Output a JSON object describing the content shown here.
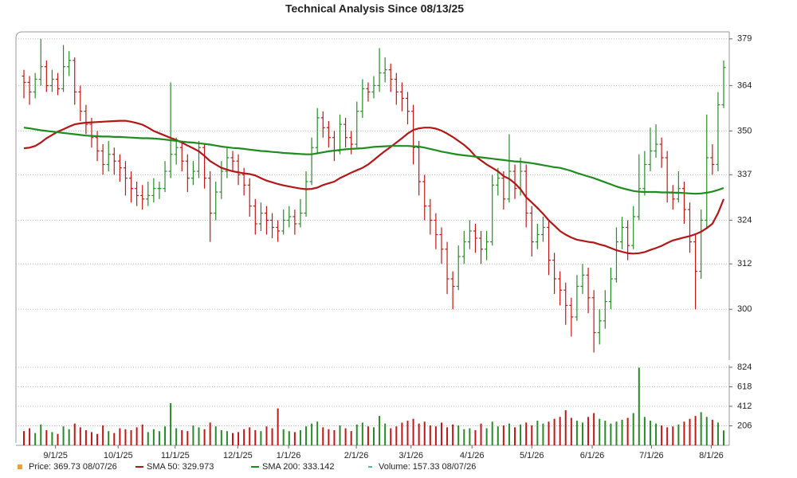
{
  "chart_data": {
    "type": "ohlc",
    "title": "Technical Analysis Since 08/13/25",
    "xlim": [
      0,
      124
    ],
    "xticks": [
      {
        "value": 5.6,
        "label": "9/1/25"
      },
      {
        "value": 16.7,
        "label": "10/1/25"
      },
      {
        "value": 26.8,
        "label": "11/1/25"
      },
      {
        "value": 37.9,
        "label": "12/1/25"
      },
      {
        "value": 46.9,
        "label": "1/1/26"
      },
      {
        "value": 58.9,
        "label": "2/1/26"
      },
      {
        "value": 68.6,
        "label": "3/1/26"
      },
      {
        "value": 79.4,
        "label": "4/1/26"
      },
      {
        "value": 90.0,
        "label": "5/1/26"
      },
      {
        "value": 100.7,
        "label": "6/1/26"
      },
      {
        "value": 111.2,
        "label": "7/1/26"
      },
      {
        "value": 121.8,
        "label": "8/1/26"
      }
    ],
    "ylim": [
      287.5,
      381.3
    ],
    "yticks": [
      300,
      312,
      324,
      337,
      350,
      364,
      379
    ],
    "log_scale": true,
    "grid": true,
    "up_color": "#2a8a2a",
    "down_color": "#c01818",
    "price_legend": {
      "name": "Price: 369.73 08/07/26",
      "color": "#f0a030"
    },
    "volume_legend": {
      "name": "Volume: 157.33 08/07/26",
      "color": "#20a0a0"
    },
    "ohlc": [
      [
        367,
        369,
        360,
        365
      ],
      [
        365,
        367,
        358,
        362
      ],
      [
        362,
        368,
        360,
        366
      ],
      [
        366,
        379,
        364,
        370
      ],
      [
        370,
        372,
        362,
        364
      ],
      [
        364,
        369,
        362,
        366
      ],
      [
        366,
        368,
        361,
        363
      ],
      [
        363,
        377,
        362,
        370
      ],
      [
        370,
        375,
        367,
        372
      ],
      [
        372,
        373,
        358,
        362
      ],
      [
        362,
        364,
        353,
        356
      ],
      [
        356,
        358,
        349,
        352
      ],
      [
        352,
        354,
        345,
        348
      ],
      [
        348,
        350,
        341,
        344
      ],
      [
        344,
        346,
        337,
        340
      ],
      [
        340,
        347,
        338,
        343
      ],
      [
        343,
        345,
        337,
        341
      ],
      [
        341,
        343,
        335,
        339
      ],
      [
        339,
        341,
        331,
        336
      ],
      [
        336,
        338,
        329,
        333
      ],
      [
        333,
        335,
        328,
        331
      ],
      [
        331,
        334,
        327,
        330
      ],
      [
        330,
        335,
        328,
        331
      ],
      [
        331,
        336,
        329,
        333
      ],
      [
        333,
        335,
        330,
        333
      ],
      [
        333,
        341,
        332,
        338
      ],
      [
        338,
        365,
        336,
        343
      ],
      [
        343,
        348,
        340,
        345
      ],
      [
        345,
        347,
        338,
        341
      ],
      [
        341,
        343,
        332,
        336
      ],
      [
        336,
        341,
        334,
        338
      ],
      [
        338,
        347,
        336,
        345
      ],
      [
        345,
        346,
        333,
        336
      ],
      [
        336,
        338,
        318,
        326
      ],
      [
        326,
        335,
        324,
        332
      ],
      [
        332,
        341,
        330,
        338
      ],
      [
        338,
        345,
        336,
        342
      ],
      [
        342,
        344,
        338,
        341
      ],
      [
        341,
        343,
        334,
        337
      ],
      [
        337,
        339,
        331,
        334
      ],
      [
        334,
        336,
        325,
        328
      ],
      [
        328,
        330,
        320,
        323
      ],
      [
        323,
        329,
        321,
        326
      ],
      [
        326,
        328,
        320,
        324
      ],
      [
        324,
        326,
        319,
        322
      ],
      [
        322,
        324,
        318,
        321
      ],
      [
        321,
        327,
        320,
        324
      ],
      [
        324,
        328,
        322,
        325
      ],
      [
        325,
        327,
        320,
        323
      ],
      [
        323,
        330,
        322,
        326
      ],
      [
        326,
        338,
        325,
        335
      ],
      [
        335,
        348,
        334,
        345
      ],
      [
        345,
        357,
        343,
        354
      ],
      [
        354,
        356,
        348,
        351
      ],
      [
        351,
        353,
        345,
        348
      ],
      [
        348,
        350,
        341,
        344
      ],
      [
        344,
        355,
        343,
        352
      ],
      [
        352,
        354,
        345,
        348
      ],
      [
        348,
        350,
        343,
        346
      ],
      [
        346,
        359,
        345,
        356
      ],
      [
        356,
        366,
        354,
        363
      ],
      [
        363,
        365,
        359,
        362
      ],
      [
        362,
        367,
        360,
        364
      ],
      [
        364,
        376,
        362,
        368
      ],
      [
        368,
        373,
        365,
        369
      ],
      [
        369,
        371,
        362,
        366
      ],
      [
        366,
        368,
        358,
        362
      ],
      [
        362,
        365,
        356,
        360
      ],
      [
        360,
        362,
        352,
        356
      ],
      [
        356,
        358,
        340,
        345
      ],
      [
        345,
        347,
        331,
        335
      ],
      [
        335,
        337,
        324,
        328
      ],
      [
        328,
        330,
        320,
        324
      ],
      [
        324,
        326,
        316,
        320
      ],
      [
        320,
        322,
        312,
        316
      ],
      [
        316,
        318,
        304,
        308
      ],
      [
        308,
        310,
        300,
        306
      ],
      [
        306,
        317,
        305,
        314
      ],
      [
        314,
        321,
        312,
        318
      ],
      [
        318,
        324,
        316,
        321
      ],
      [
        321,
        323,
        315,
        319
      ],
      [
        319,
        321,
        312,
        316
      ],
      [
        316,
        321,
        313,
        318
      ],
      [
        318,
        337,
        317,
        334
      ],
      [
        334,
        339,
        331,
        336
      ],
      [
        336,
        338,
        327,
        330
      ],
      [
        330,
        349,
        329,
        338
      ],
      [
        338,
        340,
        330,
        333
      ],
      [
        333,
        342,
        331,
        338
      ],
      [
        338,
        340,
        322,
        326
      ],
      [
        326,
        328,
        314,
        318
      ],
      [
        318,
        323,
        316,
        320
      ],
      [
        320,
        325,
        318,
        322
      ],
      [
        322,
        324,
        309,
        313
      ],
      [
        313,
        315,
        304,
        308
      ],
      [
        308,
        310,
        301,
        305
      ],
      [
        305,
        307,
        296,
        301
      ],
      [
        301,
        303,
        293,
        298
      ],
      [
        298,
        309,
        297,
        306
      ],
      [
        306,
        312,
        304,
        309
      ],
      [
        309,
        311,
        299,
        303
      ],
      [
        303,
        305,
        289,
        294
      ],
      [
        294,
        300,
        291,
        297
      ],
      [
        297,
        305,
        295,
        302
      ],
      [
        302,
        311,
        300,
        308
      ],
      [
        308,
        322,
        307,
        318
      ],
      [
        318,
        325,
        316,
        322
      ],
      [
        322,
        324,
        313,
        317
      ],
      [
        317,
        328,
        316,
        325
      ],
      [
        325,
        343,
        324,
        333
      ],
      [
        333,
        344,
        331,
        340
      ],
      [
        340,
        351,
        338,
        344
      ],
      [
        344,
        352,
        342,
        346
      ],
      [
        346,
        348,
        339,
        342
      ],
      [
        342,
        344,
        329,
        332
      ],
      [
        332,
        334,
        327,
        330
      ],
      [
        330,
        338,
        329,
        333
      ],
      [
        333,
        335,
        323,
        327
      ],
      [
        327,
        329,
        315,
        318
      ],
      [
        318,
        320,
        300,
        310
      ],
      [
        310,
        327,
        308,
        324
      ],
      [
        324,
        355,
        322,
        342
      ],
      [
        342,
        346,
        337,
        340
      ],
      [
        340,
        362,
        338,
        358
      ],
      [
        358,
        372,
        357,
        369.73
      ]
    ],
    "series": [
      {
        "name": "SMA 50: 329.973",
        "color": "#b01818",
        "values": [
          344.8,
          345,
          345.5,
          346.5,
          347.8,
          348.8,
          349.8,
          350.5,
          351.3,
          352,
          352.3,
          352.5,
          352.6,
          352.7,
          352.8,
          352.9,
          353,
          353.1,
          353.1,
          352.8,
          352.4,
          351.9,
          351,
          350,
          349.3,
          348.6,
          347.9,
          347.3,
          346.5,
          345.6,
          344.8,
          343.9,
          342.5,
          341,
          340,
          339,
          338.5,
          338,
          337.7,
          337.4,
          337.2,
          336.8,
          336,
          335.3,
          334.8,
          334.3,
          333.9,
          333.6,
          333.3,
          333,
          332.8,
          332.9,
          333.3,
          334,
          334.5,
          335,
          336,
          336.8,
          337.6,
          338.3,
          339,
          340,
          341.3,
          342.7,
          344,
          345.2,
          346.5,
          347.8,
          349.2,
          350.3,
          350.8,
          351,
          351,
          350.7,
          350.1,
          349.2,
          348.2,
          347,
          345.8,
          344.3,
          342.4,
          341.2,
          340,
          339,
          338,
          336.6,
          335.8,
          334.5,
          332.8,
          330.5,
          329,
          327.5,
          325.8,
          324,
          322.5,
          321,
          320,
          319.2,
          318.6,
          318.3,
          318,
          317.8,
          317.3,
          316.9,
          316.3,
          315.7,
          315.3,
          314.9,
          314.8,
          314.9,
          315.2,
          315.8,
          316.3,
          316.9,
          317.7,
          318.4,
          318.8,
          319.2,
          319.6,
          320.1,
          320.8,
          321.8,
          323,
          326,
          329.973
        ]
      },
      {
        "name": "SMA 200: 333.142",
        "color": "#1e8c1e",
        "values": [
          351,
          350.8,
          350.5,
          350.2,
          350,
          349.8,
          349.6,
          349.4,
          349.2,
          349,
          348.8,
          348.6,
          348.5,
          348.4,
          348.3,
          348.3,
          348.2,
          348.2,
          348.1,
          348,
          347.9,
          347.8,
          347.8,
          347.7,
          347.6,
          347.4,
          347.2,
          347,
          346.8,
          346.6,
          346.5,
          346.3,
          346.1,
          345.9,
          345.6,
          345.3,
          345.1,
          344.9,
          344.8,
          344.6,
          344.4,
          344.2,
          344,
          343.9,
          343.7,
          343.6,
          343.4,
          343.3,
          343.2,
          343.1,
          343,
          343,
          343.3,
          343.6,
          343.9,
          344.1,
          344.3,
          344.5,
          344.6,
          344.7,
          344.8,
          345,
          345.2,
          345.3,
          345.4,
          345.5,
          345.5,
          345.5,
          345.5,
          345.4,
          345.3,
          345,
          344.6,
          344.2,
          343.8,
          343.5,
          343.2,
          342.9,
          342.7,
          342.5,
          342.3,
          342.1,
          341.9,
          341.7,
          341.5,
          341.3,
          341.1,
          340.9,
          340.8,
          340.6,
          340.4,
          340.1,
          339.8,
          339.5,
          339.2,
          339,
          338.6,
          338.1,
          337.5,
          337,
          336.5,
          336,
          335.4,
          334.8,
          334.2,
          333.6,
          333.1,
          332.7,
          332.3,
          332.1,
          332,
          332,
          332,
          331.9,
          331.9,
          331.8,
          331.8,
          331.7,
          331.6,
          331.5,
          331.6,
          331.8,
          332.1,
          332.6,
          333.142
        ]
      }
    ],
    "volume": [
      150,
      180,
      130,
      220,
      160,
      140,
      120,
      200,
      170,
      230,
      190,
      160,
      140,
      120,
      210,
      150,
      130,
      180,
      170,
      160,
      190,
      220,
      140,
      170,
      150,
      200,
      445,
      180,
      160,
      150,
      210,
      190,
      170,
      240,
      200,
      160,
      150,
      130,
      140,
      170,
      190,
      160,
      150,
      200,
      180,
      390,
      170,
      150,
      140,
      160,
      200,
      230,
      250,
      190,
      170,
      160,
      210,
      180,
      150,
      220,
      240,
      200,
      190,
      310,
      230,
      180,
      200,
      240,
      260,
      280,
      230,
      250,
      210,
      200,
      240,
      190,
      220,
      210,
      170,
      180,
      160,
      230,
      180,
      250,
      200,
      210,
      230,
      190,
      220,
      240,
      210,
      260,
      230,
      250,
      280,
      300,
      370,
      290,
      260,
      240,
      300,
      340,
      280,
      260,
      230,
      250,
      270,
      290,
      340,
      820,
      300,
      260,
      230,
      210,
      190,
      200,
      220,
      250,
      280,
      310,
      350,
      300,
      270,
      240,
      157.33
    ],
    "vlim": [
      0,
      824
    ],
    "vticks": [
      206,
      412,
      618,
      824
    ]
  }
}
